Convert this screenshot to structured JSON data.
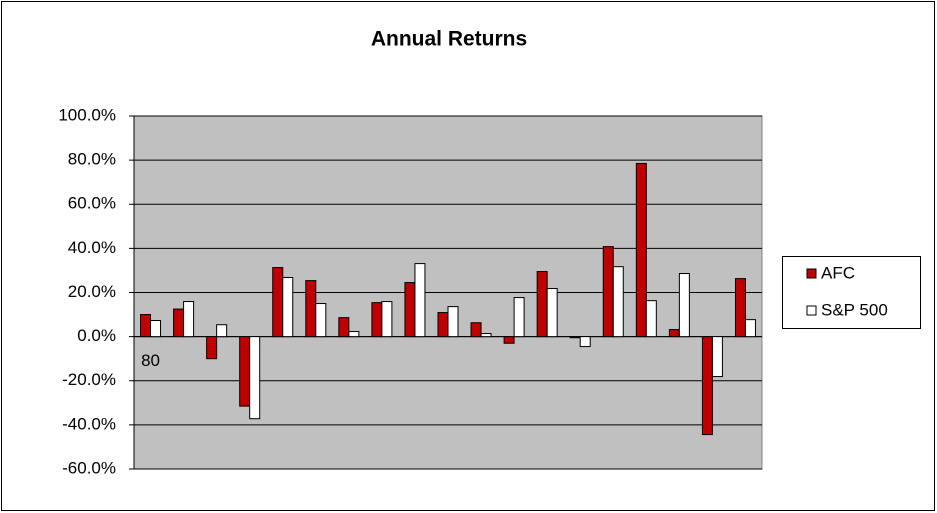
{
  "chart_data": {
    "type": "bar",
    "title": "Annual Returns",
    "categories": [
      "80",
      null,
      null,
      null,
      null,
      null,
      null,
      null,
      null,
      null,
      null,
      null,
      null,
      null,
      null,
      null,
      null,
      null,
      null
    ],
    "series": [
      {
        "name": "AFC",
        "color": "#c00000",
        "values": [
          10,
          12.5,
          -10,
          -31.5,
          31.3,
          25.4,
          8.6,
          15.4,
          24.5,
          10.9,
          6.3,
          -3,
          29.5,
          -0.5,
          40.8,
          78.5,
          3.2,
          -44.4,
          26.3
        ]
      },
      {
        "name": "S&P 500",
        "color": "#ffffff",
        "values": [
          7.3,
          15.9,
          5.4,
          -37.2,
          26.8,
          15,
          2.3,
          15.9,
          33.1,
          13.6,
          1.4,
          17.7,
          21.8,
          -4.5,
          31.7,
          16.3,
          28.6,
          -18.1,
          7.7
        ]
      }
    ],
    "ylim": [
      -60,
      100
    ],
    "yticks": [
      {
        "value": -60,
        "label": "-60.0%"
      },
      {
        "value": -40,
        "label": "-40.0%"
      },
      {
        "value": -20,
        "label": "-20.0%"
      },
      {
        "value": 0,
        "label": "0.0%"
      },
      {
        "value": 20,
        "label": "20.0%"
      },
      {
        "value": 40,
        "label": "40.0%"
      },
      {
        "value": 60,
        "label": "60.0%"
      },
      {
        "value": 80,
        "label": "80.0%"
      },
      {
        "value": 100,
        "label": "100.0%"
      }
    ],
    "grid": true,
    "legend": "right"
  }
}
